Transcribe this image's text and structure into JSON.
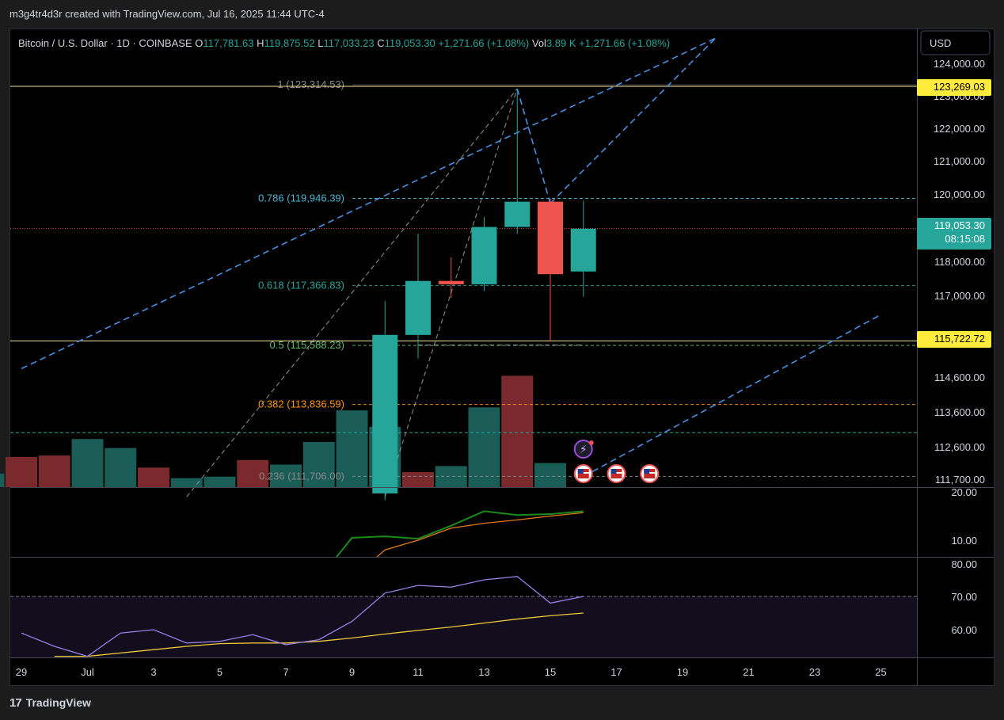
{
  "header": {
    "caption": "m3g4tr4d3r created with TradingView.com, Jul 16, 2025 11:44 UTC-4"
  },
  "footer": {
    "brand": "TradingView",
    "logo_text": "17"
  },
  "currency_button": {
    "label": "USD"
  },
  "legend": {
    "symbol": "Bitcoin / U.S. Dollar · 1D · COINBASE",
    "o_label": "O",
    "o_value": "117,781.63",
    "h_label": "H",
    "h_value": "119,875.52",
    "l_label": "L",
    "l_value": "117,033.23",
    "c_label": "C",
    "c_value": "119,053.30",
    "change": "+1,271.66 (+1.08%)",
    "vol_label": "Vol",
    "vol_value": "3.89 K",
    "vol_change": "+1,271.66 (+1.08%)"
  },
  "colors": {
    "up": "#26a69a",
    "down": "#ef5350",
    "vol_up": "#1a5c56",
    "vol_down": "#7a2a2c",
    "trend": "#4a8fe0",
    "fib_1": "#888888",
    "fib_786": "#4db6d6",
    "fib_618": "#26a69a",
    "fib_5": "#66bb6a",
    "fib_382": "#ff9800",
    "fib_236": "#888888",
    "fib_extra": "#26a69a",
    "yellow": "#ffeb3b",
    "adx": "#1b8a1b",
    "adx_signal": "#e07b1a",
    "rsi": "#9c7ee8",
    "rsi_signal": "#f0c93a"
  },
  "price_axis": {
    "ticks": [
      "124,000.00",
      "123,000.00",
      "122,000.00",
      "121,000.00",
      "120,000.00",
      "119,000.00",
      "118,000.00",
      "117,000.00",
      "115,722.72",
      "114,600.00",
      "113,600.00",
      "112,600.00",
      "111,700.00"
    ],
    "marker_high": "123,269.03",
    "marker_current_price": "119,053.30",
    "marker_countdown": "08:15:08",
    "marker_low": "115,722.72"
  },
  "fib_levels": [
    {
      "label": "1 (123,314.53)",
      "price": 123314.53
    },
    {
      "label": "0.786 (119,946.39)",
      "price": 119946.39
    },
    {
      "label": "0.618 (117,366.83)",
      "price": 117366.83
    },
    {
      "label": "0.5 (115,588.23)",
      "price": 115588.23
    },
    {
      "label": "0.382 (113,836.59)",
      "price": 113836.59
    },
    {
      "label": "0.236 (111,706.00)",
      "price": 111706.0
    }
  ],
  "adx_axis": {
    "ticks": [
      "20.00",
      "10.00"
    ]
  },
  "rsi_axis": {
    "ticks": [
      "80.00",
      "70.00",
      "60.00"
    ]
  },
  "time_axis": {
    "ticks": [
      "29",
      "Jul",
      "3",
      "5",
      "7",
      "9",
      "11",
      "13",
      "15",
      "17",
      "19",
      "21",
      "23",
      "25"
    ]
  },
  "chart_data": {
    "type": "candlestick",
    "candles": [
      {
        "date": "Jul 10",
        "open": 111200,
        "high": 116900,
        "low": 111000,
        "close": 115900
      },
      {
        "date": "Jul 11",
        "open": 115900,
        "high": 118900,
        "low": 115200,
        "close": 117500
      },
      {
        "date": "Jul 12",
        "open": 117500,
        "high": 118200,
        "low": 117000,
        "close": 117400
      },
      {
        "date": "Jul 13",
        "open": 117400,
        "high": 119400,
        "low": 117200,
        "close": 119100
      },
      {
        "date": "Jul 14",
        "open": 119100,
        "high": 123200,
        "low": 118900,
        "close": 119850
      },
      {
        "date": "Jul 15",
        "open": 119850,
        "high": 119950,
        "low": 115700,
        "close": 117700
      },
      {
        "date": "Jul 16",
        "open": 117780,
        "high": 119880,
        "low": 117030,
        "close": 119050
      }
    ],
    "volume": [
      {
        "date": "Jun 28",
        "value": 0.9,
        "dir": "up"
      },
      {
        "date": "Jun 29",
        "value": 2.0,
        "dir": "down"
      },
      {
        "date": "Jun 30",
        "value": 2.1,
        "dir": "down"
      },
      {
        "date": "Jul 1",
        "value": 3.2,
        "dir": "up"
      },
      {
        "date": "Jul 2",
        "value": 2.6,
        "dir": "up"
      },
      {
        "date": "Jul 3",
        "value": 1.3,
        "dir": "down"
      },
      {
        "date": "Jul 4",
        "value": 0.6,
        "dir": "up"
      },
      {
        "date": "Jul 5",
        "value": 0.7,
        "dir": "up"
      },
      {
        "date": "Jul 6",
        "value": 1.8,
        "dir": "down"
      },
      {
        "date": "Jul 7",
        "value": 1.5,
        "dir": "up"
      },
      {
        "date": "Jul 8",
        "value": 3.0,
        "dir": "up"
      },
      {
        "date": "Jul 9",
        "value": 5.1,
        "dir": "up"
      },
      {
        "date": "Jul 10",
        "value": 4.0,
        "dir": "up"
      },
      {
        "date": "Jul 11",
        "value": 1.0,
        "dir": "down"
      },
      {
        "date": "Jul 12",
        "value": 1.4,
        "dir": "up"
      },
      {
        "date": "Jul 13",
        "value": 5.3,
        "dir": "up"
      },
      {
        "date": "Jul 14",
        "value": 7.4,
        "dir": "down"
      },
      {
        "date": "Jul 15",
        "value": 1.6,
        "dir": "up"
      }
    ],
    "adx": {
      "main": [
        [
          8,
          2
        ],
        [
          9,
          10.5
        ],
        [
          10,
          10.8
        ],
        [
          11,
          10.3
        ],
        [
          12,
          13.0
        ],
        [
          13,
          16.0
        ],
        [
          14,
          15.2
        ],
        [
          15,
          15.4
        ],
        [
          16,
          16.0
        ]
      ],
      "signal": [
        [
          9,
          2
        ],
        [
          10,
          8
        ],
        [
          11,
          10
        ],
        [
          12,
          12.5
        ],
        [
          13,
          13.5
        ],
        [
          14,
          14.2
        ],
        [
          15,
          15.0
        ],
        [
          16,
          15.7
        ]
      ]
    },
    "rsi": {
      "main": [
        [
          -1,
          59
        ],
        [
          0,
          55
        ],
        [
          1,
          52
        ],
        [
          2,
          59
        ],
        [
          3,
          60
        ],
        [
          4,
          56
        ],
        [
          5,
          56.5
        ],
        [
          6,
          58.5
        ],
        [
          7,
          55.5
        ],
        [
          8,
          57
        ],
        [
          9,
          62.5
        ],
        [
          10,
          71
        ],
        [
          11,
          73.3
        ],
        [
          12,
          72.8
        ],
        [
          13,
          75
        ],
        [
          14,
          76
        ],
        [
          15,
          68
        ],
        [
          16,
          70
        ]
      ],
      "signal": [
        [
          0,
          52
        ],
        [
          1,
          52
        ],
        [
          2,
          53
        ],
        [
          3,
          54
        ],
        [
          4,
          55
        ],
        [
          5,
          55.8
        ],
        [
          6,
          56
        ],
        [
          7,
          56
        ],
        [
          8,
          56.5
        ],
        [
          9,
          57.5
        ],
        [
          10,
          58.7
        ],
        [
          11,
          59.8
        ],
        [
          12,
          60.8
        ],
        [
          13,
          62
        ],
        [
          14,
          63.2
        ],
        [
          15,
          64.2
        ],
        [
          16,
          65
        ]
      ]
    },
    "trend_lines": [
      {
        "from": [
          -1,
          114900
        ],
        "to": [
          20,
          124700
        ]
      },
      {
        "from": [
          14,
          123200
        ],
        "to": [
          15,
          119800
        ]
      },
      {
        "from": [
          15,
          119800
        ],
        "to": [
          20,
          124700
        ]
      },
      {
        "from": [
          16,
          111700
        ],
        "to": [
          25,
          116500
        ]
      }
    ],
    "helper_lines": [
      {
        "from": [
          4,
          111100
        ],
        "to": [
          14,
          123200
        ]
      },
      {
        "from": [
          10,
          111100
        ],
        "to": [
          14,
          123200
        ]
      },
      {
        "from": [
          11,
          115600
        ],
        "to": [
          16,
          115600
        ]
      }
    ],
    "extra_level_price": 113000,
    "high_line_price": 123269.03,
    "low_line_price": 115722.72,
    "current_price": 119053.3,
    "events": {
      "flag_days": [
        16,
        17,
        18
      ],
      "bolt_day": 16
    }
  }
}
